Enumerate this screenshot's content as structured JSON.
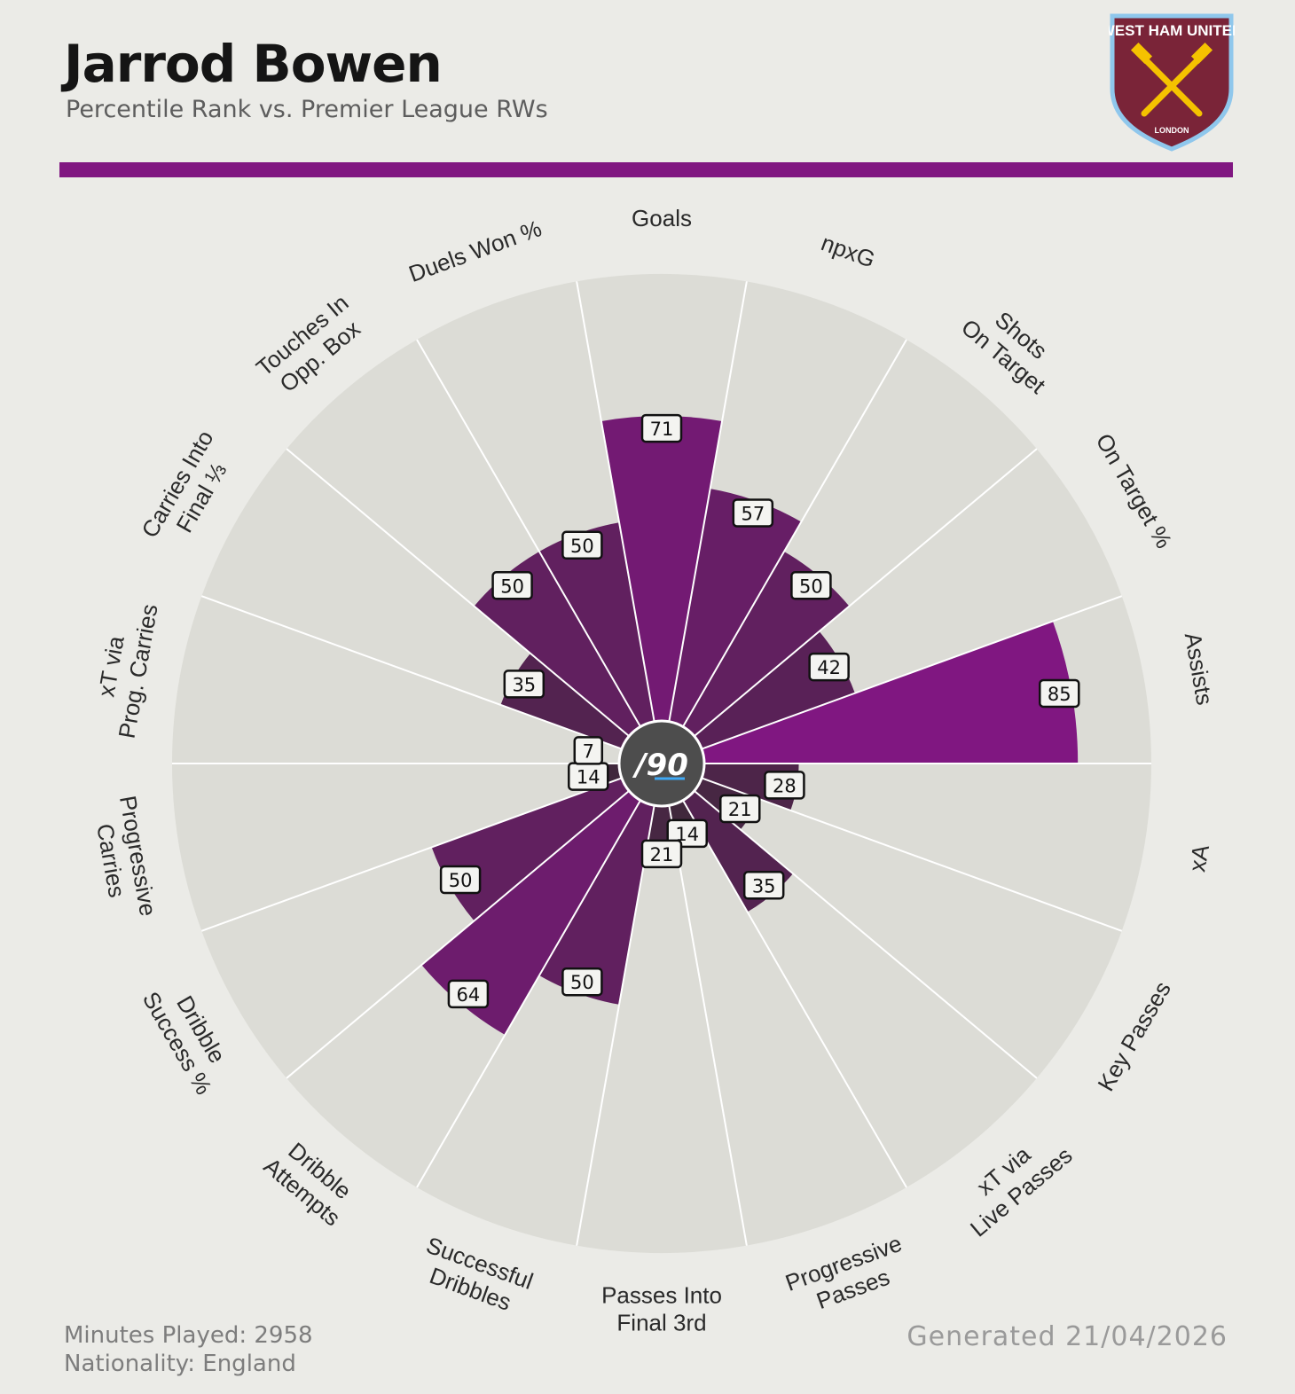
{
  "header": {
    "title": "Jarrod Bowen",
    "subtitle": "Percentile Rank vs. Premier League RWs"
  },
  "crest": {
    "name": "WEST HAM UNITED",
    "city": "LONDON",
    "colors": {
      "fill": "#7a2438",
      "border": "#8fc7ec",
      "hammers": "#f5c200"
    }
  },
  "center_logo": "/90",
  "footer": {
    "minutes": "Minutes Played: 2958",
    "nationality": "Nationality: England",
    "generated": "Generated 21/04/2026"
  },
  "colors": {
    "accent": "#801781",
    "slice_bg": "#dcdcd6",
    "low": "#3a2a35",
    "high": "#801781"
  },
  "chart_data": {
    "type": "polar-bar",
    "range": [
      0,
      100
    ],
    "categories": [
      {
        "label": [
          "Goals"
        ],
        "value": 71
      },
      {
        "label": [
          "npxG"
        ],
        "value": 57
      },
      {
        "label": [
          "Shots",
          "On Target"
        ],
        "value": 50
      },
      {
        "label": [
          "On Target %"
        ],
        "value": 42
      },
      {
        "label": [
          "Assists"
        ],
        "value": 85
      },
      {
        "label": [
          "xA"
        ],
        "value": 28
      },
      {
        "label": [
          "Key Passes"
        ],
        "value": 21
      },
      {
        "label": [
          "xT via",
          "Live Passes"
        ],
        "value": 35
      },
      {
        "label": [
          "Progressive",
          "Passes"
        ],
        "value": 14
      },
      {
        "label": [
          "Passes Into",
          "Final 3rd"
        ],
        "value": 21
      },
      {
        "label": [
          "Successful",
          "Dribbles"
        ],
        "value": 50
      },
      {
        "label": [
          "Dribble",
          "Attempts"
        ],
        "value": 64
      },
      {
        "label": [
          "Dribble",
          "Success %"
        ],
        "value": 50
      },
      {
        "label": [
          "Progressive",
          "Carries"
        ],
        "value": 14
      },
      {
        "label": [
          "xT via",
          "Prog. Carries"
        ],
        "value": 7
      },
      {
        "label": [
          "Carries Into",
          "Final ⅓"
        ],
        "value": 35
      },
      {
        "label": [
          "Touches In",
          "Opp. Box"
        ],
        "value": 50
      },
      {
        "label": [
          "Duels Won %"
        ],
        "value": 50
      }
    ]
  }
}
